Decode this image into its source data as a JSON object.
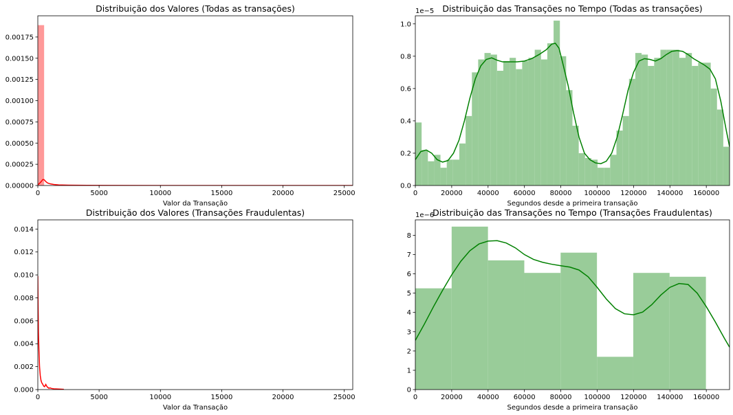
{
  "chart_data": [
    {
      "type": "bar",
      "title": "Distribuição dos Valores (Todas as transações)",
      "xlabel": "Valor da Transação",
      "ylabel": "",
      "xlim": [
        0,
        25691
      ],
      "ylim": [
        0,
        0.002
      ],
      "xticks": [
        "0",
        "5000",
        "10000",
        "15000",
        "20000",
        "25000"
      ],
      "xtick_values": [
        0,
        5000,
        10000,
        15000,
        20000,
        25000
      ],
      "yticks": [
        "0.00000",
        "0.00025",
        "0.00050",
        "0.00075",
        "0.00100",
        "0.00125",
        "0.00150",
        "0.00175"
      ],
      "ytick_values": [
        0,
        0.00025,
        0.0005,
        0.00075,
        0.001,
        0.00125,
        0.0015,
        0.00175
      ],
      "offset_text": "",
      "bar_color": "#ff9999",
      "line_color": "#ff0000",
      "bars": [
        {
          "x0": 0,
          "x1": 514,
          "value": 0.00189
        }
      ],
      "kde": [
        [
          0,
          1e-05
        ],
        [
          100,
          2e-05
        ],
        [
          200,
          3.5e-05
        ],
        [
          300,
          5e-05
        ],
        [
          400,
          7e-05
        ],
        [
          500,
          7e-05
        ],
        [
          600,
          5.5e-05
        ],
        [
          700,
          4e-05
        ],
        [
          800,
          3e-05
        ],
        [
          1000,
          2e-05
        ],
        [
          1300,
          1.2e-05
        ],
        [
          1700,
          7e-06
        ],
        [
          2500,
          4e-06
        ],
        [
          4000,
          2e-06
        ],
        [
          6000,
          1e-06
        ],
        [
          10000,
          5e-07
        ],
        [
          25691,
          2e-07
        ]
      ]
    },
    {
      "type": "bar",
      "title": "Distribuição das Transações no Tempo (Todas as transações)",
      "xlabel": "Segundos desde a primeira transação",
      "ylabel": "",
      "xlim": [
        0,
        172792
      ],
      "ylim": [
        0,
        1.05
      ],
      "xticks": [
        "0",
        "20000",
        "40000",
        "60000",
        "80000",
        "100000",
        "120000",
        "140000",
        "160000"
      ],
      "xtick_values": [
        0,
        20000,
        40000,
        60000,
        80000,
        100000,
        120000,
        140000,
        160000
      ],
      "yticks": [
        "0.0",
        "0.2",
        "0.4",
        "0.6",
        "0.8",
        "1.0"
      ],
      "ytick_values": [
        0,
        0.2,
        0.4,
        0.6,
        0.8,
        1.0
      ],
      "offset_text": "1e−5",
      "bar_color": "#99cc99",
      "line_color": "#008000",
      "bin_width": 3456,
      "values": [
        0.39,
        0.22,
        0.15,
        0.19,
        0.11,
        0.16,
        0.16,
        0.26,
        0.43,
        0.7,
        0.78,
        0.82,
        0.81,
        0.71,
        0.77,
        0.79,
        0.72,
        0.77,
        0.79,
        0.84,
        0.78,
        0.88,
        1.02,
        0.8,
        0.59,
        0.37,
        0.2,
        0.17,
        0.16,
        0.11,
        0.11,
        0.19,
        0.34,
        0.43,
        0.66,
        0.82,
        0.81,
        0.74,
        0.79,
        0.84,
        0.84,
        0.84,
        0.79,
        0.82,
        0.74,
        0.76,
        0.76,
        0.6,
        0.47,
        0.24
      ],
      "kde": [
        [
          0,
          0.16
        ],
        [
          3000,
          0.21
        ],
        [
          6000,
          0.22
        ],
        [
          9000,
          0.2
        ],
        [
          12000,
          0.16
        ],
        [
          15000,
          0.145
        ],
        [
          18000,
          0.155
        ],
        [
          21000,
          0.2
        ],
        [
          24000,
          0.28
        ],
        [
          27000,
          0.4
        ],
        [
          30000,
          0.54
        ],
        [
          33000,
          0.66
        ],
        [
          36000,
          0.74
        ],
        [
          39000,
          0.78
        ],
        [
          42000,
          0.79
        ],
        [
          45000,
          0.775
        ],
        [
          48000,
          0.765
        ],
        [
          52000,
          0.765
        ],
        [
          56000,
          0.765
        ],
        [
          60000,
          0.77
        ],
        [
          64000,
          0.785
        ],
        [
          68000,
          0.81
        ],
        [
          72000,
          0.84
        ],
        [
          75000,
          0.875
        ],
        [
          77000,
          0.88
        ],
        [
          79000,
          0.85
        ],
        [
          81000,
          0.76
        ],
        [
          84000,
          0.62
        ],
        [
          87000,
          0.45
        ],
        [
          90000,
          0.3
        ],
        [
          93000,
          0.2
        ],
        [
          96000,
          0.16
        ],
        [
          99000,
          0.14
        ],
        [
          102000,
          0.135
        ],
        [
          105000,
          0.15
        ],
        [
          108000,
          0.2
        ],
        [
          111000,
          0.3
        ],
        [
          114000,
          0.44
        ],
        [
          117000,
          0.59
        ],
        [
          120000,
          0.7
        ],
        [
          123000,
          0.77
        ],
        [
          126000,
          0.785
        ],
        [
          129000,
          0.78
        ],
        [
          132000,
          0.77
        ],
        [
          135000,
          0.785
        ],
        [
          138000,
          0.81
        ],
        [
          141000,
          0.83
        ],
        [
          144000,
          0.835
        ],
        [
          147000,
          0.83
        ],
        [
          150000,
          0.81
        ],
        [
          153000,
          0.785
        ],
        [
          156000,
          0.765
        ],
        [
          159000,
          0.745
        ],
        [
          162000,
          0.72
        ],
        [
          165000,
          0.66
        ],
        [
          168000,
          0.52
        ],
        [
          171000,
          0.34
        ],
        [
          172792,
          0.24
        ]
      ]
    },
    {
      "type": "bar",
      "title": "Distribuição dos Valores (Transações Fraudulentas)",
      "xlabel": "Valor da Transação",
      "ylabel": "",
      "xlim": [
        0,
        25691
      ],
      "ylim": [
        0,
        0.0148
      ],
      "xticks": [
        "0",
        "5000",
        "10000",
        "15000",
        "20000",
        "25000"
      ],
      "xtick_values": [
        0,
        5000,
        10000,
        15000,
        20000,
        25000
      ],
      "yticks": [
        "0.000",
        "0.002",
        "0.004",
        "0.006",
        "0.008",
        "0.010",
        "0.012",
        "0.014"
      ],
      "ytick_values": [
        0,
        0.002,
        0.004,
        0.006,
        0.008,
        0.01,
        0.012,
        0.014
      ],
      "offset_text": "",
      "bar_color": "#ff9999",
      "line_color": "#ff0000",
      "bars": [],
      "kde": [
        [
          0,
          0.0099
        ],
        [
          20,
          0.0075
        ],
        [
          50,
          0.005
        ],
        [
          90,
          0.0035
        ],
        [
          140,
          0.002
        ],
        [
          200,
          0.0012
        ],
        [
          260,
          0.0008
        ],
        [
          320,
          0.0006
        ],
        [
          380,
          0.0005
        ],
        [
          430,
          0.0004
        ],
        [
          480,
          0.0003
        ],
        [
          550,
          0.00025
        ],
        [
          650,
          0.00045
        ],
        [
          720,
          0.0003
        ],
        [
          800,
          0.0002
        ],
        [
          900,
          0.00012
        ],
        [
          1000,
          0.00015
        ],
        [
          1100,
          0.0001
        ],
        [
          1300,
          7e-05
        ],
        [
          1600,
          5e-05
        ],
        [
          2000,
          3e-05
        ],
        [
          2125,
          2e-05
        ]
      ]
    },
    {
      "type": "bar",
      "title": "Distribuição das Transações no Tempo (Transações Fraudulentas)",
      "xlabel": "Segundos desde a primeira transação",
      "ylabel": "",
      "xlim": [
        0,
        172792
      ],
      "ylim": [
        0,
        8.8
      ],
      "xticks": [
        "0",
        "20000",
        "40000",
        "60000",
        "80000",
        "100000",
        "120000",
        "140000",
        "160000"
      ],
      "xtick_values": [
        0,
        20000,
        40000,
        60000,
        80000,
        100000,
        120000,
        140000,
        160000
      ],
      "yticks": [
        "0",
        "1",
        "2",
        "3",
        "4",
        "5",
        "6",
        "7",
        "8"
      ],
      "ytick_values": [
        0,
        1,
        2,
        3,
        4,
        5,
        6,
        7,
        8
      ],
      "offset_text": "1e−6",
      "bar_color": "#99cc99",
      "line_color": "#008000",
      "bin_width": 19974,
      "values": [
        5.25,
        8.45,
        6.7,
        6.05,
        7.1,
        1.7,
        6.05,
        5.85
      ],
      "kde": [
        [
          0,
          2.55
        ],
        [
          5000,
          3.4
        ],
        [
          10000,
          4.3
        ],
        [
          15000,
          5.15
        ],
        [
          20000,
          5.95
        ],
        [
          25000,
          6.65
        ],
        [
          30000,
          7.2
        ],
        [
          35000,
          7.55
        ],
        [
          40000,
          7.7
        ],
        [
          45000,
          7.72
        ],
        [
          50000,
          7.6
        ],
        [
          55000,
          7.35
        ],
        [
          60000,
          7.0
        ],
        [
          65000,
          6.75
        ],
        [
          70000,
          6.6
        ],
        [
          75000,
          6.5
        ],
        [
          80000,
          6.42
        ],
        [
          85000,
          6.35
        ],
        [
          90000,
          6.2
        ],
        [
          95000,
          5.85
        ],
        [
          100000,
          5.3
        ],
        [
          105000,
          4.7
        ],
        [
          110000,
          4.2
        ],
        [
          115000,
          3.93
        ],
        [
          120000,
          3.88
        ],
        [
          125000,
          4.02
        ],
        [
          130000,
          4.4
        ],
        [
          135000,
          4.9
        ],
        [
          140000,
          5.3
        ],
        [
          145000,
          5.5
        ],
        [
          150000,
          5.45
        ],
        [
          155000,
          5.0
        ],
        [
          160000,
          4.3
        ],
        [
          165000,
          3.5
        ],
        [
          170000,
          2.65
        ],
        [
          172792,
          2.2
        ]
      ]
    }
  ]
}
